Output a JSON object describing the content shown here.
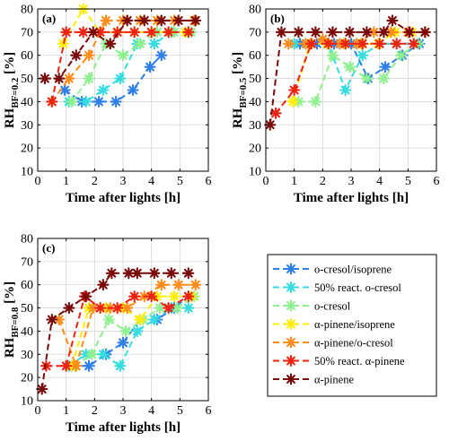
{
  "chart_data": {
    "type": "line",
    "series_styles": [
      {
        "name": "o-cresol/isoprene",
        "color": "#2f7fe8"
      },
      {
        "name": "50% react. o-cresol",
        "color": "#36dcdf"
      },
      {
        "name": "o-cresol",
        "color": "#8ef08e"
      },
      {
        "name": "α-pinene/isoprene",
        "color": "#ffee00"
      },
      {
        "name": "α-pinene/o-cresol",
        "color": "#ff8c1a"
      },
      {
        "name": "50% react. α-pinene",
        "color": "#ee2211"
      },
      {
        "name": "α-pinene",
        "color": "#7a0a0a"
      }
    ],
    "xlabel": "Time after lights [h]",
    "xlim": [
      0,
      6
    ],
    "xticks": [
      0,
      1,
      2,
      3,
      4,
      5,
      6
    ],
    "ylim": [
      10,
      80
    ],
    "yticks": [
      10,
      20,
      30,
      40,
      50,
      60,
      70,
      80
    ],
    "grid": true,
    "legend_placement": "bottom-right",
    "legend_labels": [
      "o-cresol/isoprene",
      "50% react. o-cresol",
      "o-cresol",
      "α-pinene/isoprene",
      "α-pinene/o-cresol",
      "50% react. α-pinene",
      "α-pinene"
    ],
    "panels": [
      {
        "label": "(a)",
        "ylabel_main": "RH",
        "ylabel_sub": "BF=0.2",
        "ylabel_unit": " [%]",
        "series": [
          {
            "x": [
              0.95,
              1.55,
              2.15,
              2.75,
              3.35,
              3.95,
              4.35
            ],
            "y": [
              45,
              40,
              40,
              40,
              45,
              55,
              60
            ]
          },
          {
            "x": [
              1.1,
              1.7,
              2.3,
              2.9,
              3.5,
              4.1,
              4.7,
              5.3
            ],
            "y": [
              40,
              40,
              45,
              50,
              65,
              65,
              70,
              70
            ]
          },
          {
            "x": [
              1.2,
              1.8,
              2.4,
              3.0,
              3.6,
              4.2,
              4.8,
              5.4
            ],
            "y": [
              40,
              50,
              65,
              60,
              65,
              70,
              70,
              70
            ]
          },
          {
            "x": [
              0.9,
              1.6,
              2.2,
              2.8,
              3.4,
              4.0,
              4.6,
              5.2
            ],
            "y": [
              65,
              80,
              70,
              70,
              70,
              70,
              70,
              70
            ]
          },
          {
            "x": [
              0.5,
              1.1,
              1.8,
              2.4,
              3.0,
              3.6,
              4.2,
              4.8,
              5.5
            ],
            "y": [
              40,
              50,
              60,
              75,
              75,
              75,
              75,
              75,
              75
            ]
          },
          {
            "x": [
              0.5,
              1.0,
              1.6,
              2.2,
              2.8,
              3.4,
              4.0,
              4.6,
              5.3
            ],
            "y": [
              40,
              70,
              70,
              70,
              70,
              70,
              70,
              70,
              70
            ]
          },
          {
            "x": [
              0.25,
              0.75,
              1.35,
              1.95,
              2.55,
              3.15,
              3.75,
              4.35,
              4.95,
              5.55
            ],
            "y": [
              50,
              50,
              60,
              70,
              65,
              75,
              75,
              75,
              75,
              75
            ]
          }
        ]
      },
      {
        "label": "(b)",
        "ylabel_main": "RH",
        "ylabel_sub": "BF=0.5",
        "ylabel_unit": " [%]",
        "series": [
          {
            "x": [
              1.2,
              1.8,
              2.4,
              3.0,
              3.6,
              4.2,
              4.8,
              5.4
            ],
            "y": [
              65,
              65,
              65,
              65,
              50,
              55,
              60,
              65
            ]
          },
          {
            "x": [
              1.0,
              1.6,
              2.2,
              2.8,
              3.4,
              4.0,
              4.6,
              5.2
            ],
            "y": [
              65,
              65,
              65,
              45,
              60,
              65,
              65,
              65
            ]
          },
          {
            "x": [
              1.15,
              1.75,
              2.35,
              2.95,
              3.55,
              4.15,
              4.75,
              5.35
            ],
            "y": [
              40,
              40,
              60,
              55,
              50,
              50,
              60,
              65
            ]
          },
          {
            "x": [
              0.95,
              1.55,
              2.15,
              2.75,
              3.35,
              3.95,
              4.55,
              5.15
            ],
            "y": [
              40,
              65,
              65,
              65,
              65,
              65,
              70,
              70
            ]
          },
          {
            "x": [
              0.8,
              1.4,
              2.0,
              2.6,
              3.2,
              3.8,
              4.4,
              5.0,
              5.6
            ],
            "y": [
              65,
              65,
              67,
              65,
              65,
              70,
              70,
              70,
              70
            ]
          },
          {
            "x": [
              0.35,
              1.0,
              1.6,
              2.2,
              2.8,
              3.4,
              4.0,
              4.6,
              5.2
            ],
            "y": [
              35,
              45,
              65,
              65,
              65,
              65,
              65,
              65,
              65
            ]
          },
          {
            "x": [
              0.15,
              0.55,
              1.15,
              1.75,
              2.35,
              2.95,
              3.55,
              4.15,
              4.45,
              5.05,
              5.6
            ],
            "y": [
              30,
              70,
              70,
              70,
              70,
              70,
              70,
              70,
              75,
              70,
              70
            ]
          }
        ]
      },
      {
        "label": "(c)",
        "ylabel_main": "RH",
        "ylabel_sub": "BF=0.8",
        "ylabel_unit": " [%]",
        "series": [
          {
            "x": [
              1.2,
              1.8,
              2.4,
              3.0,
              3.6,
              4.2,
              4.8,
              5.3
            ],
            "y": [
              25,
              25,
              30,
              35,
              45,
              45,
              50,
              55
            ]
          },
          {
            "x": [
              1.1,
              1.7,
              2.3,
              2.9,
              3.5,
              4.1,
              4.7,
              5.3
            ],
            "y": [
              25,
              30,
              30,
              25,
              40,
              45,
              50,
              50
            ]
          },
          {
            "x": [
              1.3,
              1.9,
              2.5,
              3.1,
              3.7,
              4.3,
              4.9,
              5.5
            ],
            "y": [
              25,
              30,
              45,
              40,
              45,
              50,
              50,
              55
            ]
          },
          {
            "x": [
              1.2,
              1.8,
              2.4,
              3.0,
              3.6,
              4.2,
              4.8,
              5.4
            ],
            "y": [
              25,
              50,
              50,
              50,
              45,
              55,
              55,
              55
            ]
          },
          {
            "x": [
              0.75,
              1.35,
              1.95,
              2.55,
              3.15,
              3.75,
              4.35,
              4.95,
              5.55
            ],
            "y": [
              45,
              25,
              50,
              50,
              50,
              55,
              60,
              60,
              60
            ]
          },
          {
            "x": [
              0.3,
              1.0,
              1.65,
              2.2,
              2.8,
              3.4,
              4.0,
              4.6,
              5.3
            ],
            "y": [
              25,
              25,
              55,
              50,
              50,
              55,
              55,
              50,
              55
            ]
          },
          {
            "x": [
              0.15,
              0.5,
              1.1,
              1.7,
              2.3,
              2.6,
              3.2,
              3.5,
              4.1,
              4.7,
              5.3
            ],
            "y": [
              15,
              45,
              50,
              55,
              60,
              65,
              65,
              65,
              65,
              65,
              65
            ]
          }
        ]
      }
    ]
  }
}
